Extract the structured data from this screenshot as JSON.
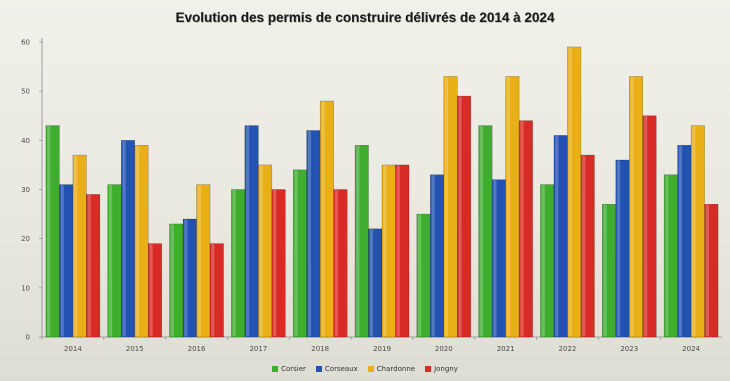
{
  "chart_data": {
    "type": "bar",
    "title": "Evolution des permis de construire délivrés de 2014 à 2024",
    "categories": [
      "2014",
      "2015",
      "2016",
      "2017",
      "2018",
      "2019",
      "2020",
      "2021",
      "2022",
      "2023",
      "2024"
    ],
    "ylim": [
      0,
      60
    ],
    "yticks": [
      0,
      10,
      20,
      30,
      40,
      50,
      60
    ],
    "grid": false,
    "legend_position": "bottom",
    "series": [
      {
        "name": "Corsier",
        "color": "#3fae2f",
        "values": [
          43,
          31,
          23,
          30,
          34,
          39,
          25,
          43,
          31,
          27,
          33
        ]
      },
      {
        "name": "Corseaux",
        "color": "#2352b3",
        "values": [
          31,
          40,
          24,
          43,
          42,
          22,
          33,
          32,
          41,
          36,
          39
        ]
      },
      {
        "name": "Chardonne",
        "color": "#e8b016",
        "values": [
          37,
          39,
          31,
          35,
          48,
          35,
          53,
          53,
          59,
          53,
          43
        ]
      },
      {
        "name": "Jongny",
        "color": "#d92b25",
        "values": [
          29,
          19,
          19,
          30,
          30,
          35,
          49,
          44,
          37,
          45,
          27
        ]
      }
    ]
  }
}
